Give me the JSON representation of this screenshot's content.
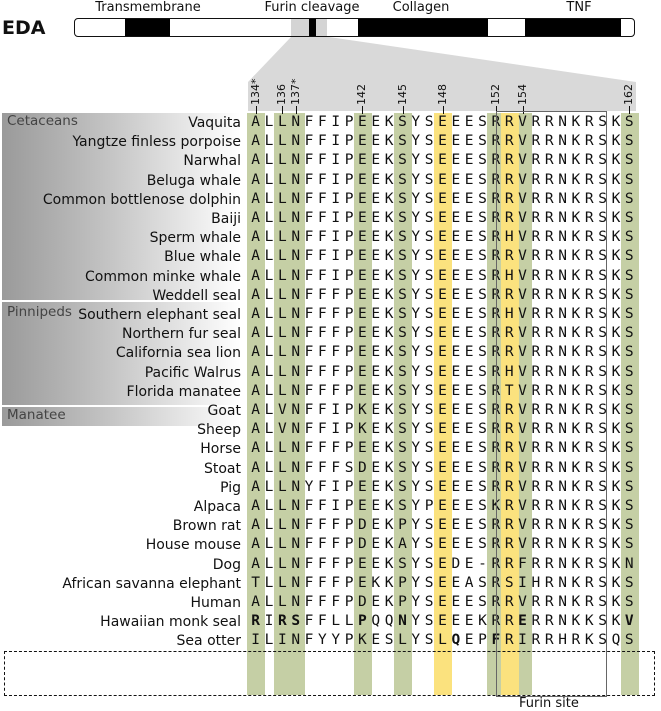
{
  "gene": "EDA",
  "domains": [
    "Transmembrane",
    "Furin cleavage",
    "Collagen",
    "TNF"
  ],
  "positions": [
    "134*",
    "136",
    "137*",
    "142",
    "145",
    "148",
    "152",
    "154",
    "162"
  ],
  "groups": [
    {
      "name": "Cetaceans"
    },
    {
      "name": "Pinnipeds"
    },
    {
      "name": "Manatee"
    }
  ],
  "rows": [
    {
      "species": "Vaquita",
      "seq": "ALLNFFIPEEKSYSEEESRRVRRNKRSKS"
    },
    {
      "species": "Yangtze finless porpoise",
      "seq": "ALLNFFIPEEKSYSEEESRRVRRNKRSKS"
    },
    {
      "species": "Narwhal",
      "seq": "ALLNFFIPEEKSYSEEESRRVRRNKRSKS"
    },
    {
      "species": "Beluga whale",
      "seq": "ALLNFFIPEEKSYSEEESRRVRRNKRSKS"
    },
    {
      "species": "Common bottlenose dolphin",
      "seq": "ALLNFFIPEEKSYSEEESRRVRRNKRSKS"
    },
    {
      "species": "Baiji",
      "seq": "ALLNFFIPEEKSYSEEESRRVRRNKRSKS"
    },
    {
      "species": "Sperm whale",
      "seq": "ALLNFFIPEEKSYSEEESRHVRRNKRSKS"
    },
    {
      "species": "Blue whale",
      "seq": "ALLNFFIPEEKSYSEEESRRVRRNKRSKS"
    },
    {
      "species": "Common minke whale",
      "seq": "ALLNFFIPEEKSYSEEESRHVRRNKRSKS"
    },
    {
      "species": "Weddell seal",
      "seq": "ALLNFFFPEEKSYSEEESRRVRRNKRSKS"
    },
    {
      "species": "Southern elephant seal",
      "seq": "ALLNFFFPEEKSYSEEESRHVRRNKRSKS"
    },
    {
      "species": "Northern fur seal",
      "seq": "ALLNFFFPEEKSYSEEESRRVRRNKRSKS"
    },
    {
      "species": "California sea lion",
      "seq": "ALLNFFFPEEKSYSEEESRRVRRNKRSKS"
    },
    {
      "species": "Pacific Walrus",
      "seq": "ALLNFFFPEEKSYSEEESRHVRRNKRSKS"
    },
    {
      "species": "Florida manatee",
      "seq": "ALLNFFFPEEKSYSEEESRTVRRNKRSKS"
    },
    {
      "species": "Goat",
      "seq": "ALVNFFIPKEKSYSEEESRRVRRNKRSKS"
    },
    {
      "species": "Sheep",
      "seq": "ALVNFFIPKEKSYSEEESRRVRRNKRSKS"
    },
    {
      "species": "Horse",
      "seq": "ALLNFFFPEEKSYSEEESRRVRRNKRSKS"
    },
    {
      "species": "Stoat",
      "seq": "ALLNFFFSDEKSYSEEESRRVRRNKRSKS"
    },
    {
      "species": "Pig",
      "seq": "ALLNYFIPEEKSYSEEESRRVRRNKRSKS"
    },
    {
      "species": "Alpaca",
      "seq": "ALLNFFIPEEKSYPEEESKRVRRNKRSKS"
    },
    {
      "species": "Brown rat",
      "seq": "ALLNFFFPDEKPYSEEESRRVRRNKRSKS"
    },
    {
      "species": "House mouse",
      "seq": "ALLNFFFPDEKAYSEEESRRVRRNKRSKS"
    },
    {
      "species": "Dog",
      "seq": "ALLNFFFPEEKSYSEDE-RRFRRNKRSKN"
    },
    {
      "species": "African savanna elephant",
      "seq": "TLLNFFFPEKKPYSEEASRSIHRNKRSKS"
    },
    {
      "species": "Human",
      "seq": "ALLNFFFPDEKPYSEEESRRVRRNKRSKS"
    },
    {
      "species": "Hawaiian monk seal",
      "seq": "RIRSFFLLPQQNYSEEEKRRERRNKKSKV"
    },
    {
      "species": "Sea otter",
      "seq": "ILINFYYPKESLYSLQEPFRIRRHRKSQS"
    }
  ],
  "furin_site_label": "Furin site",
  "colors": {
    "highlight_green": "#c5cfa5",
    "highlight_yellow": "#fbe27e",
    "domain_black": "#000000",
    "domain_grey": "#d4d4d4"
  }
}
